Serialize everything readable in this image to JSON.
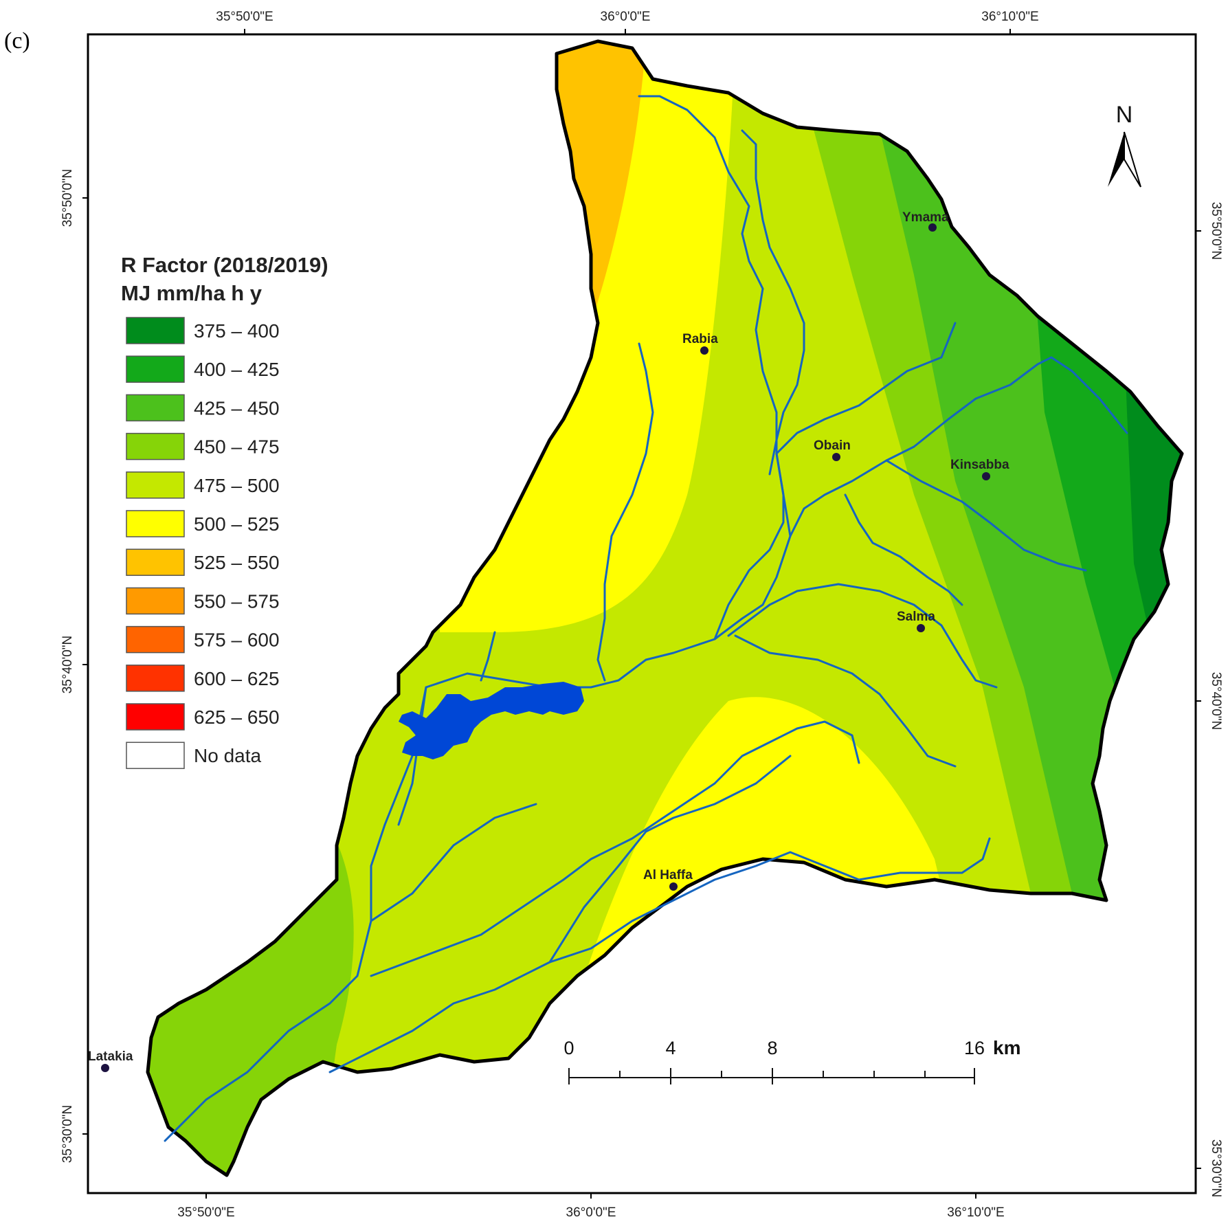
{
  "figure": {
    "panel_label": "(c)"
  },
  "coordinates": {
    "top": [
      "35°50'0\"E",
      "36°0'0\"E",
      "36°10'0\"E"
    ],
    "bottom": [
      "35°50'0\"E",
      "36°0'0\"E",
      "36°10'0\"E"
    ],
    "left": [
      "35°50'0\"N",
      "35°40'0\"N",
      "35°30'0\"N"
    ],
    "right": [
      "35°50'0\"N",
      "35°40'0\"N",
      "35°30'0\"N"
    ]
  },
  "legend": {
    "title": "R Factor (2018/2019)",
    "unit": "MJ mm/ha h y",
    "classes": [
      {
        "label": "375 – 400",
        "color": "#008c1c"
      },
      {
        "label": "400 – 425",
        "color": "#13a91a"
      },
      {
        "label": "425 – 450",
        "color": "#4cc11c"
      },
      {
        "label": "450 – 475",
        "color": "#86d408"
      },
      {
        "label": "475 – 500",
        "color": "#c4e800"
      },
      {
        "label": "500 – 525",
        "color": "#ffff00"
      },
      {
        "label": "525 – 550",
        "color": "#ffc300"
      },
      {
        "label": "550 – 575",
        "color": "#ff9a00"
      },
      {
        "label": "575 – 600",
        "color": "#ff6400"
      },
      {
        "label": "600 – 625",
        "color": "#ff3200"
      },
      {
        "label": "625 – 650",
        "color": "#ff0000"
      },
      {
        "label": "No data",
        "color": "#ffffff"
      }
    ]
  },
  "places": {
    "ymama": "Ymama",
    "rabia": "Rabia",
    "obain": "Obain",
    "kinsabba": "Kinsabba",
    "salma": "Salma",
    "al_haffa": "Al Haffa",
    "latakia": "Latakia"
  },
  "scale_bar": {
    "ticks": [
      "0",
      "4",
      "8",
      "16"
    ],
    "unit": "km"
  },
  "north_arrow": {
    "label": "N",
    "icon": "north-arrow-icon"
  },
  "colors": {
    "river": "#1565c0",
    "lake": "#0047d6",
    "boundary": "#000000"
  }
}
